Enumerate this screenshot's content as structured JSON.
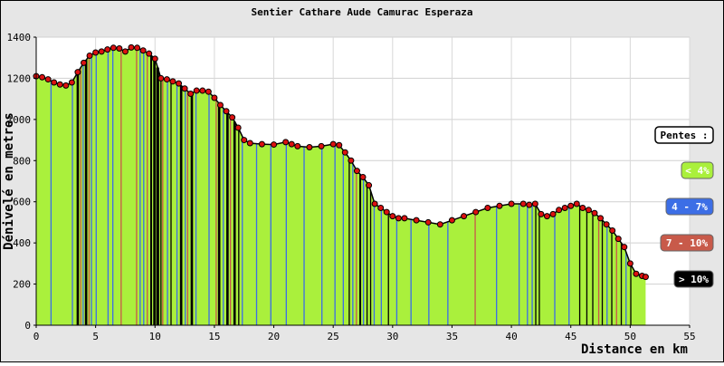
{
  "chart_data": {
    "type": "area",
    "title": "Sentier Cathare Aude Camurac Esperaza",
    "xlabel": "Distance en km",
    "ylabel": "Dénivelé en metres",
    "xlim": [
      0,
      55
    ],
    "ylim": [
      0,
      1400
    ],
    "xticks": [
      0,
      5,
      10,
      15,
      20,
      25,
      30,
      35,
      40,
      45,
      50,
      55
    ],
    "yticks": [
      0,
      200,
      400,
      600,
      800,
      1000,
      1200,
      1400
    ],
    "grid": true,
    "legend_placement": "right",
    "legend": {
      "title": "Pentes :",
      "items": [
        {
          "label": "< 4%",
          "color": "#aaf03c",
          "text_color": "#ffffff"
        },
        {
          "label": "4 - 7%",
          "color": "#3c6ee6",
          "text_color": "#ffffff"
        },
        {
          "label": "7 - 10%",
          "color": "#c85a4a",
          "text_color": "#ffffff"
        },
        {
          "label": "> 10%",
          "color": "#000000",
          "text_color": "#ffffff"
        }
      ]
    },
    "series": [
      {
        "x": [
          0,
          0.5,
          1,
          1.5,
          2,
          2.5,
          3,
          3.5,
          4,
          4.5,
          5,
          5.5,
          6,
          6.5,
          7,
          7.5,
          8,
          8.5,
          9,
          9.5,
          10,
          10.5,
          11,
          11.5,
          12,
          12.5,
          13,
          13.5,
          14,
          14.5,
          15,
          15.5,
          16,
          16.5,
          17,
          17.5,
          18,
          19,
          20,
          21,
          21.5,
          22,
          23,
          24,
          25,
          25.5,
          26,
          26.5,
          27,
          27.5,
          28,
          28.5,
          29,
          29.5,
          30,
          30.5,
          31,
          32,
          33,
          34,
          35,
          36,
          37,
          38,
          39,
          40,
          41,
          41.5,
          42,
          42.5,
          43,
          43.5,
          44,
          44.5,
          45,
          45.5,
          46,
          46.5,
          47,
          47.5,
          48,
          48.5,
          49,
          49.5,
          50,
          50.5,
          51,
          51.3
        ],
        "y": [
          1210,
          1205,
          1195,
          1180,
          1170,
          1165,
          1180,
          1230,
          1275,
          1310,
          1325,
          1330,
          1340,
          1348,
          1345,
          1330,
          1350,
          1348,
          1335,
          1320,
          1295,
          1200,
          1195,
          1185,
          1175,
          1150,
          1125,
          1140,
          1140,
          1135,
          1105,
          1070,
          1040,
          1010,
          960,
          900,
          885,
          880,
          878,
          890,
          880,
          870,
          865,
          870,
          880,
          875,
          840,
          800,
          750,
          720,
          680,
          590,
          570,
          550,
          530,
          520,
          520,
          510,
          500,
          490,
          510,
          530,
          550,
          570,
          580,
          590,
          590,
          585,
          590,
          540,
          530,
          540,
          560,
          570,
          580,
          590,
          570,
          560,
          545,
          520,
          490,
          460,
          420,
          380,
          300,
          250,
          240,
          235
        ]
      }
    ],
    "grade_bands": [
      {
        "x0": 1.2,
        "x1": 1.3,
        "grade": "4 - 7%"
      },
      {
        "x0": 3.0,
        "x1": 3.1,
        "grade": "4 - 7%"
      },
      {
        "x0": 3.4,
        "x1": 3.6,
        "grade": "> 10%"
      },
      {
        "x0": 3.7,
        "x1": 3.8,
        "grade": "7 - 10%"
      },
      {
        "x0": 3.9,
        "x1": 4.0,
        "grade": "4 - 7%"
      },
      {
        "x0": 4.1,
        "x1": 4.3,
        "grade": "> 10%"
      },
      {
        "x0": 4.4,
        "x1": 4.5,
        "grade": "7 - 10%"
      },
      {
        "x0": 4.6,
        "x1": 4.7,
        "grade": "4 - 7%"
      },
      {
        "x0": 5.0,
        "x1": 5.1,
        "grade": "4 - 7%"
      },
      {
        "x0": 6.0,
        "x1": 6.1,
        "grade": "4 - 7%"
      },
      {
        "x0": 6.4,
        "x1": 6.5,
        "grade": "4 - 7%"
      },
      {
        "x0": 7.1,
        "x1": 7.2,
        "grade": "7 - 10%"
      },
      {
        "x0": 8.4,
        "x1": 8.5,
        "grade": "7 - 10%"
      },
      {
        "x0": 8.7,
        "x1": 8.8,
        "grade": "4 - 7%"
      },
      {
        "x0": 9.0,
        "x1": 9.1,
        "grade": "4 - 7%"
      },
      {
        "x0": 9.3,
        "x1": 9.4,
        "grade": "7 - 10%"
      },
      {
        "x0": 9.6,
        "x1": 9.75,
        "grade": "> 10%"
      },
      {
        "x0": 9.85,
        "x1": 10.05,
        "grade": "> 10%"
      },
      {
        "x0": 10.1,
        "x1": 10.35,
        "grade": "> 10%"
      },
      {
        "x0": 10.45,
        "x1": 10.55,
        "grade": "> 10%"
      },
      {
        "x0": 10.6,
        "x1": 10.7,
        "grade": "7 - 10%"
      },
      {
        "x0": 11.0,
        "x1": 11.1,
        "grade": "4 - 7%"
      },
      {
        "x0": 11.3,
        "x1": 11.4,
        "grade": "> 10%"
      },
      {
        "x0": 11.8,
        "x1": 11.9,
        "grade": "4 - 7%"
      },
      {
        "x0": 12.1,
        "x1": 12.3,
        "grade": "> 10%"
      },
      {
        "x0": 12.5,
        "x1": 12.6,
        "grade": "4 - 7%"
      },
      {
        "x0": 12.7,
        "x1": 12.8,
        "grade": "7 - 10%"
      },
      {
        "x0": 13.0,
        "x1": 13.2,
        "grade": "> 10%"
      },
      {
        "x0": 13.4,
        "x1": 13.5,
        "grade": "4 - 7%"
      },
      {
        "x0": 14.5,
        "x1": 14.6,
        "grade": "4 - 7%"
      },
      {
        "x0": 15.1,
        "x1": 15.2,
        "grade": "7 - 10%"
      },
      {
        "x0": 15.3,
        "x1": 15.5,
        "grade": "> 10%"
      },
      {
        "x0": 15.7,
        "x1": 15.8,
        "grade": "4 - 7%"
      },
      {
        "x0": 16.0,
        "x1": 16.2,
        "grade": "> 10%"
      },
      {
        "x0": 16.3,
        "x1": 16.4,
        "grade": "7 - 10%"
      },
      {
        "x0": 16.6,
        "x1": 16.8,
        "grade": "> 10%"
      },
      {
        "x0": 17.0,
        "x1": 17.1,
        "grade": "> 10%"
      },
      {
        "x0": 17.3,
        "x1": 17.4,
        "grade": "4 - 7%"
      },
      {
        "x0": 18.5,
        "x1": 18.6,
        "grade": "4 - 7%"
      },
      {
        "x0": 19.7,
        "x1": 19.8,
        "grade": "4 - 7%"
      },
      {
        "x0": 21.0,
        "x1": 21.1,
        "grade": "4 - 7%"
      },
      {
        "x0": 22.5,
        "x1": 22.6,
        "grade": "4 - 7%"
      },
      {
        "x0": 24.0,
        "x1": 24.1,
        "grade": "4 - 7%"
      },
      {
        "x0": 25.1,
        "x1": 25.2,
        "grade": "4 - 7%"
      },
      {
        "x0": 25.8,
        "x1": 25.9,
        "grade": "4 - 7%"
      },
      {
        "x0": 26.3,
        "x1": 26.4,
        "grade": "> 10%"
      },
      {
        "x0": 26.6,
        "x1": 26.7,
        "grade": "4 - 7%"
      },
      {
        "x0": 26.9,
        "x1": 27.0,
        "grade": "7 - 10%"
      },
      {
        "x0": 27.2,
        "x1": 27.35,
        "grade": "> 10%"
      },
      {
        "x0": 27.5,
        "x1": 27.6,
        "grade": "4 - 7%"
      },
      {
        "x0": 27.8,
        "x1": 27.9,
        "grade": "> 10%"
      },
      {
        "x0": 28.1,
        "x1": 28.2,
        "grade": "> 10%"
      },
      {
        "x0": 28.4,
        "x1": 28.5,
        "grade": "4 - 7%"
      },
      {
        "x0": 29.0,
        "x1": 29.1,
        "grade": "4 - 7%"
      },
      {
        "x0": 29.6,
        "x1": 29.7,
        "grade": "> 10%"
      },
      {
        "x0": 30.3,
        "x1": 30.4,
        "grade": "4 - 7%"
      },
      {
        "x0": 31.5,
        "x1": 31.6,
        "grade": "4 - 7%"
      },
      {
        "x0": 33.0,
        "x1": 33.1,
        "grade": "4 - 7%"
      },
      {
        "x0": 34.6,
        "x1": 34.7,
        "grade": "4 - 7%"
      },
      {
        "x0": 36.9,
        "x1": 37.0,
        "grade": "7 - 10%"
      },
      {
        "x0": 38.7,
        "x1": 38.8,
        "grade": "4 - 7%"
      },
      {
        "x0": 40.6,
        "x1": 40.7,
        "grade": "4 - 7%"
      },
      {
        "x0": 41.3,
        "x1": 41.4,
        "grade": "4 - 7%"
      },
      {
        "x0": 41.7,
        "x1": 41.8,
        "grade": "4 - 7%"
      },
      {
        "x0": 42.0,
        "x1": 42.1,
        "grade": "> 10%"
      },
      {
        "x0": 42.3,
        "x1": 42.4,
        "grade": "> 10%"
      },
      {
        "x0": 43.6,
        "x1": 43.7,
        "grade": "4 - 7%"
      },
      {
        "x0": 44.8,
        "x1": 44.9,
        "grade": "4 - 7%"
      },
      {
        "x0": 45.7,
        "x1": 45.8,
        "grade": "> 10%"
      },
      {
        "x0": 46.3,
        "x1": 46.4,
        "grade": "> 10%"
      },
      {
        "x0": 46.8,
        "x1": 46.9,
        "grade": "> 10%"
      },
      {
        "x0": 47.3,
        "x1": 47.4,
        "grade": "7 - 10%"
      },
      {
        "x0": 47.6,
        "x1": 47.7,
        "grade": "> 10%"
      },
      {
        "x0": 48.0,
        "x1": 48.1,
        "grade": "4 - 7%"
      },
      {
        "x0": 48.4,
        "x1": 48.5,
        "grade": "> 10%"
      },
      {
        "x0": 48.8,
        "x1": 48.9,
        "grade": "7 - 10%"
      },
      {
        "x0": 49.2,
        "x1": 49.3,
        "grade": "> 10%"
      },
      {
        "x0": 49.6,
        "x1": 49.7,
        "grade": "4 - 7%"
      },
      {
        "x0": 50.0,
        "x1": 50.1,
        "grade": "> 10%"
      }
    ]
  }
}
